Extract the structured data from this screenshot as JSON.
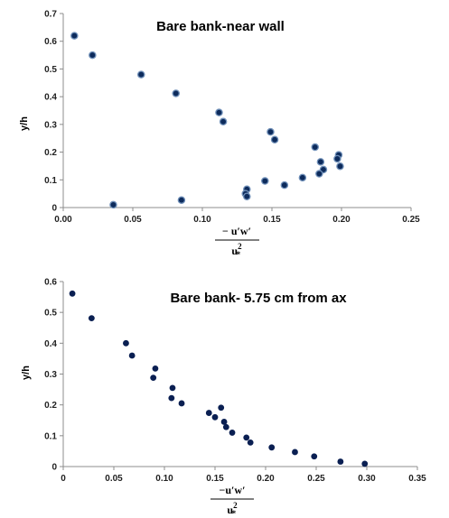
{
  "chart_data": [
    {
      "type": "scatter",
      "title": "Bare bank-near wall",
      "ylabel": "y/h",
      "xlabel": {
        "numerator": "− u′w′",
        "denominator_base": "u",
        "denominator_sup": "2",
        "denominator_sub": "*"
      },
      "xlim": [
        0,
        0.25
      ],
      "ylim": [
        0,
        0.7
      ],
      "xticks": [
        0,
        0.05,
        0.1,
        0.15,
        0.2,
        0.25
      ],
      "yticks": [
        0,
        0.1,
        0.2,
        0.3,
        0.4,
        0.5,
        0.6,
        0.7
      ],
      "xtick_labels": [
        "0.00",
        "0.05",
        "0.10",
        "0.15",
        "0.20",
        "0.25"
      ],
      "ytick_labels": [
        "0",
        "0.1",
        "0.2",
        "0.3",
        "0.4",
        "0.5",
        "0.6",
        "0.7"
      ],
      "grid": false,
      "marker_color": "#0d2b5c",
      "points": [
        [
          0.008,
          0.62
        ],
        [
          0.021,
          0.55
        ],
        [
          0.056,
          0.48
        ],
        [
          0.081,
          0.412
        ],
        [
          0.112,
          0.343
        ],
        [
          0.115,
          0.31
        ],
        [
          0.149,
          0.273
        ],
        [
          0.152,
          0.245
        ],
        [
          0.181,
          0.218
        ],
        [
          0.198,
          0.19
        ],
        [
          0.197,
          0.176
        ],
        [
          0.185,
          0.165
        ],
        [
          0.199,
          0.149
        ],
        [
          0.187,
          0.137
        ],
        [
          0.184,
          0.122
        ],
        [
          0.172,
          0.108
        ],
        [
          0.145,
          0.096
        ],
        [
          0.159,
          0.081
        ],
        [
          0.132,
          0.066
        ],
        [
          0.131,
          0.05
        ],
        [
          0.132,
          0.04
        ],
        [
          0.085,
          0.027
        ],
        [
          0.036,
          0.01
        ]
      ]
    },
    {
      "type": "scatter",
      "title": "Bare bank- 5.75 cm from ax",
      "ylabel": "y/h",
      "xlabel": {
        "numerator": "−u′w′",
        "denominator_base": "u",
        "denominator_sup": "2",
        "denominator_sub": "*"
      },
      "xlim": [
        0,
        0.35
      ],
      "ylim": [
        0,
        0.6
      ],
      "xticks": [
        0,
        0.05,
        0.1,
        0.15,
        0.2,
        0.25,
        0.3,
        0.35
      ],
      "yticks": [
        0,
        0.1,
        0.2,
        0.3,
        0.4,
        0.5,
        0.6
      ],
      "xtick_labels": [
        "0",
        "0.05",
        "0.10",
        "0.15",
        "0.20",
        "0.25",
        "0.30",
        "0.35"
      ],
      "ytick_labels": [
        "0",
        "0.1",
        "0.2",
        "0.3",
        "0.4",
        "0.5",
        "0.6"
      ],
      "grid": false,
      "marker_color": "#0a1f52",
      "points": [
        [
          0.009,
          0.561
        ],
        [
          0.028,
          0.481
        ],
        [
          0.062,
          0.4
        ],
        [
          0.068,
          0.36
        ],
        [
          0.091,
          0.318
        ],
        [
          0.089,
          0.288
        ],
        [
          0.108,
          0.255
        ],
        [
          0.107,
          0.222
        ],
        [
          0.117,
          0.205
        ],
        [
          0.144,
          0.174
        ],
        [
          0.15,
          0.16
        ],
        [
          0.156,
          0.191
        ],
        [
          0.159,
          0.145
        ],
        [
          0.161,
          0.128
        ],
        [
          0.167,
          0.11
        ],
        [
          0.181,
          0.094
        ],
        [
          0.185,
          0.078
        ],
        [
          0.206,
          0.062
        ],
        [
          0.229,
          0.047
        ],
        [
          0.248,
          0.033
        ],
        [
          0.274,
          0.016
        ],
        [
          0.298,
          0.009
        ]
      ]
    }
  ]
}
